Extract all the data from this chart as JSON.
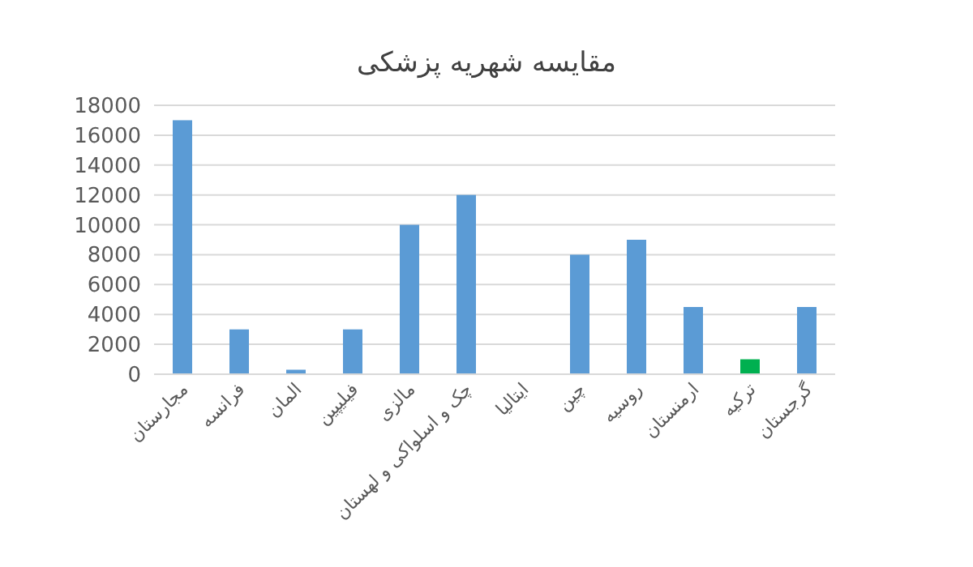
{
  "chart_data": {
    "type": "bar",
    "title": "مقایسه شهریه پزشکی",
    "categories": [
      "مجارستان",
      "فرانسه",
      "المان",
      "فیلیپین",
      "مالزی",
      "چک و اسلواکی و لهستان",
      "ایتالیا",
      "چین",
      "روسیه",
      "ارمنستان",
      "ترکیه",
      "گرجستان"
    ],
    "values": [
      17000,
      3000,
      300,
      3000,
      10000,
      12000,
      0,
      8000,
      9000,
      4500,
      1000,
      4500
    ],
    "colors": [
      "#5b9bd5",
      "#5b9bd5",
      "#5b9bd5",
      "#5b9bd5",
      "#5b9bd5",
      "#5b9bd5",
      "#5b9bd5",
      "#5b9bd5",
      "#5b9bd5",
      "#5b9bd5",
      "#00b050",
      "#5b9bd5"
    ],
    "ylim": [
      0,
      18000
    ],
    "yticks": [
      0,
      2000,
      4000,
      6000,
      8000,
      10000,
      12000,
      14000,
      16000,
      18000
    ],
    "grid": "y"
  }
}
